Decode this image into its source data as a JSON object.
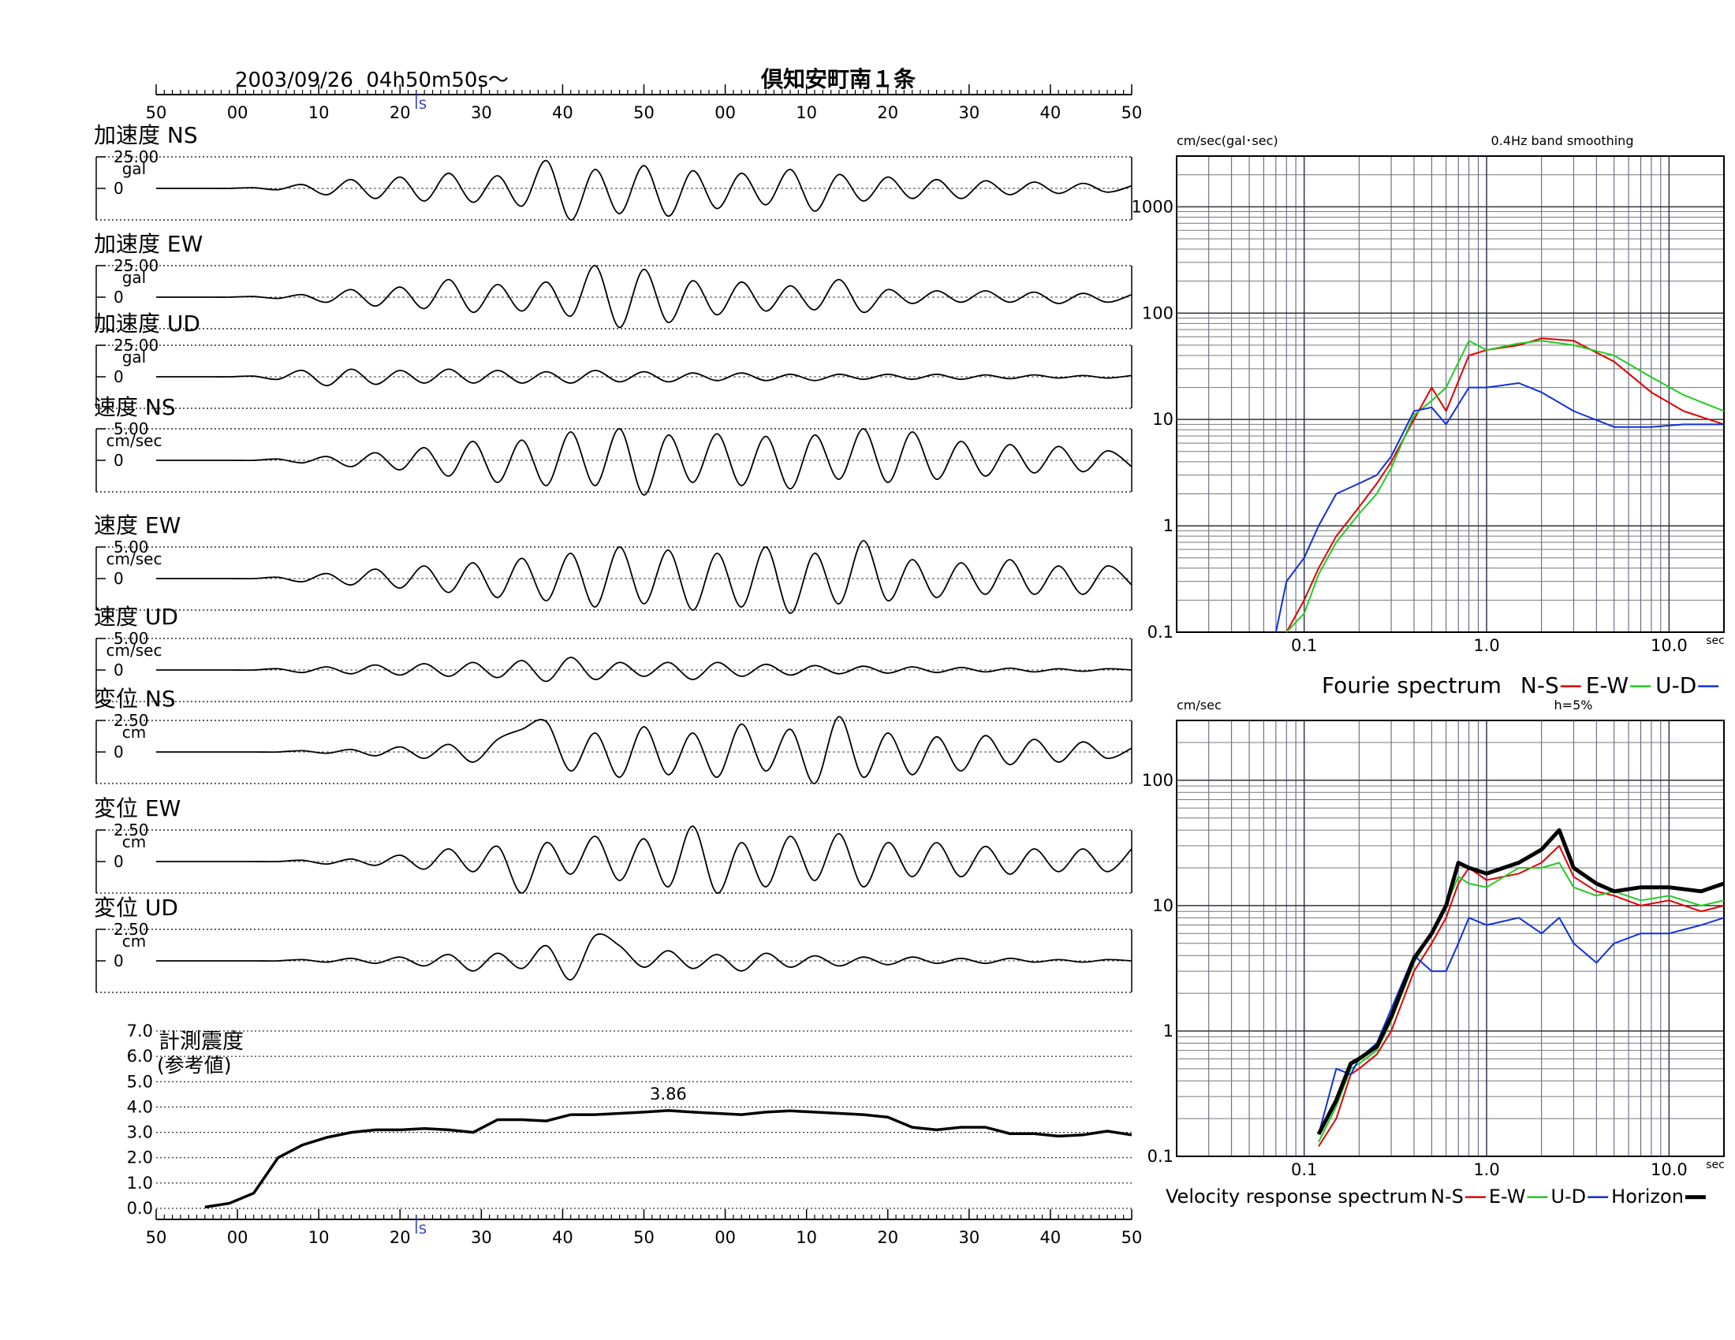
{
  "chart_data": [
    {
      "type": "waveform",
      "title": "2003/09/26  04h50m50s〜",
      "subtitle": "倶知安町南１条",
      "x": [
        0,
        3,
        6,
        9,
        12,
        15,
        18,
        21,
        24,
        27,
        30,
        33,
        36,
        39,
        42,
        45,
        48,
        51,
        54,
        57,
        60,
        63,
        66,
        69,
        72,
        75,
        78,
        81,
        84,
        87,
        90,
        93,
        96,
        99,
        102,
        105,
        108,
        111,
        114,
        117,
        120
      ],
      "xlim": [
        0,
        120
      ],
      "xticks": [
        {
          "value": 0,
          "label": "50"
        },
        {
          "value": 10,
          "label": "00"
        },
        {
          "value": 20,
          "label": "10"
        },
        {
          "value": 30,
          "label": "20"
        },
        {
          "value": 40,
          "label": "30"
        },
        {
          "value": 50,
          "label": "40"
        },
        {
          "value": 60,
          "label": "50"
        },
        {
          "value": 70,
          "label": "00"
        },
        {
          "value": 80,
          "label": "10"
        },
        {
          "value": 90,
          "label": "20"
        },
        {
          "value": 100,
          "label": "30"
        },
        {
          "value": 110,
          "label": "40"
        },
        {
          "value": 120,
          "label": "50"
        }
      ],
      "s_marker": {
        "value": 32,
        "label": "S"
      },
      "panels": [
        {
          "name": "加速度 NS",
          "unit": "gal",
          "ylim": [
            -25,
            25
          ],
          "yticks": [
            {
              "value": 25,
              "label": "25.00"
            },
            0
          ],
          "values": [
            0,
            0,
            0,
            0,
            0.5,
            -1,
            3,
            -5,
            7,
            -8,
            9,
            -10,
            12,
            -11,
            10,
            -14,
            22,
            -25,
            15,
            -20,
            18,
            -22,
            14,
            -16,
            12,
            -13,
            15,
            -18,
            11,
            -10,
            9,
            -8,
            7,
            -8,
            6,
            -5,
            5,
            -4,
            4,
            -3,
            2
          ]
        },
        {
          "name": "加速度 EW",
          "unit": "gal",
          "ylim": [
            -25,
            25
          ],
          "yticks": [
            {
              "value": 25,
              "label": "25.00"
            },
            0
          ],
          "values": [
            0,
            0,
            0,
            0,
            0.5,
            -1,
            2,
            -4,
            6,
            -7,
            8,
            -9,
            14,
            -12,
            10,
            -11,
            12,
            -15,
            25,
            -24,
            22,
            -20,
            13,
            -14,
            12,
            -11,
            9,
            -10,
            14,
            -12,
            6,
            -5,
            5,
            -4,
            5,
            -4,
            4,
            -5,
            3,
            -4,
            2
          ]
        },
        {
          "name": "加速度 UD",
          "unit": "gal",
          "ylim": [
            -25,
            25
          ],
          "yticks": [
            {
              "value": 25,
              "label": "25.00"
            },
            0
          ],
          "values": [
            0,
            0,
            0,
            0,
            0.5,
            -2,
            5,
            -7,
            6,
            -6,
            5,
            -5,
            6,
            -5,
            5,
            -5,
            4,
            -5,
            5,
            -4,
            4,
            -4,
            3,
            -3,
            3,
            -3,
            2,
            -3,
            2,
            -2,
            2,
            -2,
            2,
            -2,
            1.5,
            -1.5,
            1.5,
            -1,
            1,
            -1,
            1
          ]
        },
        {
          "name": "速度 NS",
          "unit": "cm/sec",
          "ylim": [
            -5,
            5
          ],
          "yticks": [
            {
              "value": 5,
              "label": "5.00"
            },
            0
          ],
          "values": [
            0,
            0,
            0,
            0,
            0,
            0.2,
            -0.4,
            0.6,
            -1,
            1.2,
            -1.5,
            2,
            -2.5,
            3,
            -3.5,
            3.2,
            -4,
            4.5,
            -4,
            5,
            -5.5,
            4,
            -3.5,
            4.2,
            -4,
            3.8,
            -4.5,
            4,
            -3,
            5,
            -3.5,
            4.5,
            -3,
            3,
            -2.5,
            2.5,
            -2,
            2.2,
            -1.8,
            1.5,
            -1
          ]
        },
        {
          "name": "速度 EW",
          "unit": "cm/sec",
          "ylim": [
            -5,
            5
          ],
          "yticks": [
            {
              "value": 5,
              "label": "5.00"
            },
            0
          ],
          "values": [
            0,
            0,
            0,
            0,
            0,
            0.2,
            -0.5,
            0.8,
            -1,
            1.5,
            -1.5,
            2,
            -2.2,
            2.5,
            -3,
            3.2,
            -3.5,
            4,
            -4.5,
            5,
            -4,
            4.5,
            -5,
            4,
            -4.5,
            5,
            -5.5,
            4,
            -4,
            6,
            -3.5,
            3,
            -3,
            2.5,
            -2.5,
            3,
            -2.5,
            2,
            -2.5,
            2,
            -1
          ]
        },
        {
          "name": "速度 UD",
          "unit": "cm/sec",
          "ylim": [
            -5,
            5
          ],
          "yticks": [
            {
              "value": 5,
              "label": "5.00"
            },
            0
          ],
          "values": [
            0,
            0,
            0,
            0,
            0,
            0.2,
            -0.4,
            0.5,
            -0.6,
            0.8,
            -0.8,
            1,
            -1,
            1.2,
            -1.2,
            1.5,
            -1.8,
            2,
            -1.5,
            1.2,
            -1,
            1.2,
            -1.5,
            1.2,
            -1,
            0.9,
            -0.8,
            0.7,
            -0.6,
            0.6,
            -0.5,
            0.5,
            -0.4,
            0.4,
            -0.3,
            0.3,
            -0.3,
            0.2,
            -0.2,
            0.2,
            0
          ]
        },
        {
          "name": "変位 NS",
          "unit": "cm",
          "ylim": [
            -2.5,
            2.5
          ],
          "yticks": [
            {
              "value": 2.5,
              "label": "2.50"
            },
            0
          ],
          "values": [
            0,
            0,
            0,
            0,
            0,
            0,
            0.1,
            -0.1,
            0.2,
            -0.3,
            0.4,
            -0.5,
            0.6,
            -0.8,
            1,
            1.8,
            2.4,
            -1.5,
            1.5,
            -2,
            2,
            -1.8,
            1.5,
            -2,
            2.2,
            -1.5,
            1.8,
            -2.5,
            2.8,
            -2,
            1.5,
            -1.8,
            1.2,
            -1.5,
            1.3,
            -1,
            1,
            -0.8,
            0.8,
            -0.5,
            0.3
          ]
        },
        {
          "name": "変位 EW",
          "unit": "cm",
          "ylim": [
            -2.5,
            2.5
          ],
          "yticks": [
            {
              "value": 2.5,
              "label": "2.50"
            },
            0
          ],
          "values": [
            0,
            0,
            0,
            0,
            0,
            0,
            0.1,
            -0.2,
            0.2,
            -0.3,
            0.5,
            -0.6,
            1,
            -0.8,
            1.2,
            -2.5,
            1.5,
            -1,
            2,
            -1.5,
            1.8,
            -2,
            2.8,
            -2.5,
            1.5,
            -2,
            2,
            -1.5,
            2.2,
            -2,
            1.5,
            -1.2,
            1.5,
            -1.2,
            1.2,
            -1,
            1,
            -0.8,
            1,
            -0.8,
            1
          ]
        },
        {
          "name": "変位 UD",
          "unit": "cm",
          "ylim": [
            -2.5,
            2.5
          ],
          "yticks": [
            {
              "value": 2.5,
              "label": "2.50"
            },
            0
          ],
          "values": [
            0,
            0,
            0,
            0,
            0,
            0,
            0.1,
            -0.1,
            0.2,
            -0.2,
            0.3,
            -0.4,
            0.5,
            -0.8,
            0.6,
            -0.6,
            1.2,
            -1.5,
            2,
            1.2,
            -0.5,
            0.8,
            -0.6,
            0.5,
            -0.8,
            0.6,
            -0.5,
            0.4,
            -0.4,
            0.3,
            -0.3,
            0.3,
            -0.2,
            0.2,
            -0.2,
            0.2,
            -0.1,
            0.1,
            -0.1,
            0.1,
            0
          ]
        }
      ]
    },
    {
      "type": "line",
      "title": "計測震度",
      "subtitle": "(参考値)",
      "x": [
        0,
        3,
        6,
        9,
        12,
        15,
        18,
        21,
        24,
        27,
        30,
        33,
        36,
        39,
        42,
        45,
        48,
        51,
        54,
        57,
        60,
        63,
        66,
        69,
        72,
        75,
        78,
        81,
        84,
        87,
        90,
        93,
        96,
        99,
        102,
        105,
        108,
        111,
        114,
        117,
        120
      ],
      "values": [
        null,
        null,
        0.05,
        0.2,
        0.6,
        2,
        2.5,
        2.8,
        3.0,
        3.1,
        3.1,
        3.15,
        3.1,
        3.0,
        3.5,
        3.5,
        3.45,
        3.7,
        3.7,
        3.75,
        3.8,
        3.86,
        3.8,
        3.75,
        3.7,
        3.8,
        3.85,
        3.8,
        3.75,
        3.7,
        3.6,
        3.2,
        3.1,
        3.2,
        3.2,
        2.95,
        2.95,
        2.85,
        2.9,
        3.05,
        2.9
      ],
      "color": "#000000",
      "peak_label": 3.86,
      "xlim": [
        0,
        120
      ],
      "xticks": [
        {
          "value": 0,
          "label": "50"
        },
        {
          "value": 10,
          "label": "00"
        },
        {
          "value": 20,
          "label": "10"
        },
        {
          "value": 30,
          "label": "20"
        },
        {
          "value": 40,
          "label": "30"
        },
        {
          "value": 50,
          "label": "40"
        },
        {
          "value": 60,
          "label": "50"
        },
        {
          "value": 70,
          "label": "00"
        },
        {
          "value": 80,
          "label": "10"
        },
        {
          "value": 90,
          "label": "20"
        },
        {
          "value": 100,
          "label": "30"
        },
        {
          "value": 110,
          "label": "40"
        },
        {
          "value": 120,
          "label": "50"
        }
      ],
      "s_marker": {
        "value": 32,
        "label": "S"
      },
      "ylim": [
        0,
        7
      ],
      "yticks": [
        {
          "value": 0,
          "label": "0.0"
        },
        {
          "value": 1,
          "label": "1.0"
        },
        {
          "value": 2,
          "label": "2.0"
        },
        {
          "value": 3,
          "label": "3.0"
        },
        {
          "value": 4,
          "label": "4.0"
        },
        {
          "value": 5,
          "label": "5.0"
        },
        {
          "value": 6,
          "label": "6.0"
        },
        {
          "value": 7,
          "label": "7.0"
        }
      ],
      "grid": true
    },
    {
      "type": "line",
      "title": "Fourie spectrum",
      "y_label": "cm/sec(gal･sec)",
      "note": "0.4Hz band smoothing",
      "x_unit": "sec",
      "log_x": true,
      "log_y": true,
      "grid": true,
      "xlim": [
        0.02,
        20
      ],
      "ylim": [
        0.1,
        3000
      ],
      "xticks": [
        0.1,
        {
          "value": 1,
          "label": "1.0"
        },
        {
          "value": 10,
          "label": "10.0"
        }
      ],
      "yticks": [
        0.1,
        1,
        10,
        100,
        1000
      ],
      "x": [
        0.07,
        0.08,
        0.1,
        0.12,
        0.15,
        0.2,
        0.25,
        0.3,
        0.4,
        0.5,
        0.6,
        0.8,
        1,
        1.5,
        2,
        3,
        5,
        8,
        12,
        20
      ],
      "series": [
        {
          "name": "N-S",
          "color": "#e00000",
          "values": [
            null,
            0.1,
            0.2,
            0.4,
            0.8,
            1.5,
            2.5,
            4,
            10,
            20,
            12,
            40,
            45,
            50,
            58,
            55,
            35,
            18,
            12,
            9
          ]
        },
        {
          "name": "E-W",
          "color": "#22cc22",
          "values": [
            null,
            0.1,
            0.15,
            0.35,
            0.7,
            1.3,
            2,
            3.5,
            11,
            15,
            20,
            55,
            45,
            52,
            55,
            50,
            40,
            25,
            17,
            12
          ]
        },
        {
          "name": "U-D",
          "color": "#1030e0",
          "values": [
            0.1,
            0.3,
            0.5,
            1,
            2,
            2.5,
            3,
            4.5,
            12,
            13,
            9,
            20,
            20,
            22,
            18,
            12,
            8.5,
            8.5,
            9,
            9
          ]
        }
      ]
    },
    {
      "type": "line",
      "title": "Velocity response spectrum",
      "y_label": "cm/sec",
      "note": "h=5%",
      "x_unit": "sec",
      "log_x": true,
      "log_y": true,
      "grid": true,
      "xlim": [
        0.02,
        20
      ],
      "ylim": [
        0.1,
        300
      ],
      "xticks": [
        0.1,
        {
          "value": 1,
          "label": "1.0"
        },
        {
          "value": 10,
          "label": "10.0"
        }
      ],
      "yticks": [
        0.1,
        1,
        10,
        100
      ],
      "x": [
        0.12,
        0.15,
        0.18,
        0.2,
        0.25,
        0.3,
        0.4,
        0.5,
        0.6,
        0.7,
        0.8,
        1,
        1.5,
        2,
        2.5,
        3,
        4,
        5,
        7,
        10,
        15,
        20
      ],
      "series": [
        {
          "name": "N-S",
          "color": "#e00000",
          "values": [
            0.12,
            0.2,
            0.45,
            0.5,
            0.65,
            1,
            3,
            5,
            8,
            15,
            20,
            16,
            18,
            22,
            30,
            17,
            13,
            12,
            10,
            11,
            9,
            10
          ]
        },
        {
          "name": "E-W",
          "color": "#22cc22",
          "values": [
            0.13,
            0.25,
            0.5,
            0.55,
            0.7,
            1.2,
            3.5,
            6,
            10,
            17,
            15,
            14,
            20,
            20,
            22,
            14,
            12,
            13,
            11,
            12,
            10,
            11
          ]
        },
        {
          "name": "U-D",
          "color": "#1030e0",
          "values": [
            0.15,
            0.5,
            0.45,
            0.6,
            0.8,
            1.5,
            4,
            3,
            3,
            5,
            8,
            7,
            8,
            6,
            8,
            5,
            3.5,
            5,
            6,
            6,
            7,
            8
          ]
        },
        {
          "name": "Horizon",
          "color": "#000000",
          "width": 5,
          "values": [
            0.15,
            0.28,
            0.55,
            0.6,
            0.75,
            1.3,
            3.8,
            6,
            10,
            22,
            20,
            18,
            22,
            28,
            40,
            20,
            15,
            13,
            14,
            14,
            13,
            15
          ]
        }
      ]
    }
  ]
}
